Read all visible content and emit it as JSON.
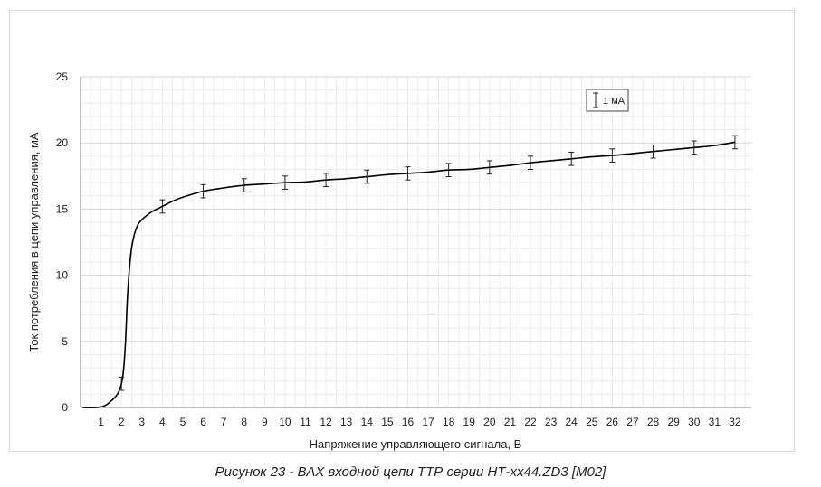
{
  "caption": "Рисунок 23 - ВАХ входной цепи ТТР серии НТ-xx44.ZD3 [M02]",
  "chart_data": {
    "type": "line",
    "xlabel": "Напряжение управляющего сигнала, В",
    "ylabel": "Ток потребления в цепи управления, мА",
    "xlim": [
      0,
      32.8
    ],
    "ylim": [
      0,
      25
    ],
    "x_ticks": [
      "1",
      "2",
      "3",
      "4",
      "5",
      "6",
      "7",
      "8",
      "9",
      "10",
      "11",
      "12",
      "13",
      "14",
      "15",
      "16",
      "17",
      "18",
      "19",
      "20",
      "21",
      "22",
      "23",
      "24",
      "25",
      "26",
      "27",
      "28",
      "29",
      "30",
      "31",
      "32"
    ],
    "y_ticks": [
      "0",
      "5",
      "10",
      "15",
      "20",
      "25"
    ],
    "grid": true,
    "error_bar_legend": "1 мА",
    "legend_position": "top-right",
    "series": [
      {
        "x": [
          0.1,
          0.8,
          1.2,
          1.5,
          1.8,
          2.0,
          2.1,
          2.2,
          2.3,
          2.45,
          2.6,
          2.8,
          3.0,
          3.3,
          3.6,
          4.0,
          4.5,
          5.0,
          6.0,
          7.0,
          8.0,
          9.0,
          10.0,
          11.0,
          12.0,
          13.0,
          14.0,
          15.0,
          16.0,
          17.0,
          18.0,
          19.0,
          20.0,
          21.0,
          22.0,
          23.0,
          24.0,
          25.0,
          26.0,
          27.0,
          28.0,
          29.0,
          30.0,
          31.0,
          32.0
        ],
        "y": [
          0,
          0,
          0.15,
          0.5,
          1.0,
          1.8,
          2.8,
          5.0,
          8.5,
          11.5,
          12.9,
          13.8,
          14.2,
          14.6,
          14.9,
          15.2,
          15.6,
          15.9,
          16.35,
          16.6,
          16.8,
          16.9,
          17.0,
          17.05,
          17.2,
          17.3,
          17.45,
          17.6,
          17.7,
          17.8,
          17.95,
          18.0,
          18.15,
          18.3,
          18.5,
          18.65,
          18.8,
          18.95,
          19.05,
          19.2,
          19.35,
          19.5,
          19.65,
          19.8,
          20.05
        ],
        "color": "#000000"
      }
    ],
    "error_bars": {
      "x": [
        2,
        4,
        6,
        8,
        10,
        12,
        14,
        16,
        18,
        20,
        22,
        24,
        26,
        28,
        30,
        32
      ],
      "y": [
        1.8,
        15.2,
        16.35,
        16.8,
        17.0,
        17.2,
        17.45,
        17.7,
        17.95,
        18.15,
        18.5,
        18.8,
        19.05,
        19.35,
        19.65,
        20.05
      ],
      "err": 0.5
    }
  }
}
